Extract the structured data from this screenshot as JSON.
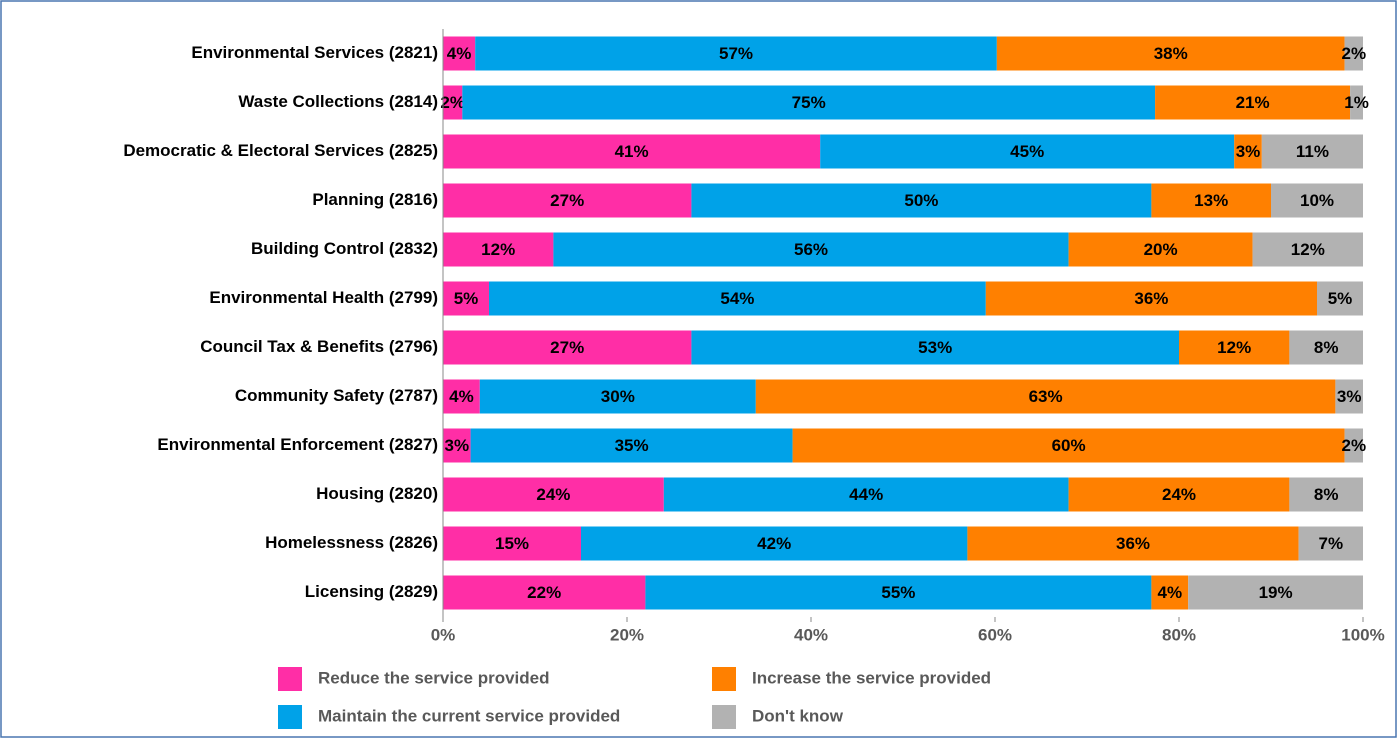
{
  "chart_data": {
    "type": "bar",
    "orientation": "horizontal",
    "stacked": true,
    "categories": [
      "Environmental Services  (2821)",
      "Waste Collections (2814)",
      "Democratic & Electoral Services  (2825)",
      "Planning  (2816)",
      "Building Control (2832)",
      "Environmental Health (2799)",
      "Council Tax & Benefits (2796)",
      "Community Safety (2787)",
      "Environmental Enforcement (2827)",
      "Housing (2820)",
      "Homelessness (2826)",
      "Licensing (2829)"
    ],
    "series": [
      {
        "name": "Reduce the service provided",
        "color": "#ff2ea6",
        "values": [
          3.5,
          2.1,
          41,
          27,
          12,
          5,
          27,
          4,
          3,
          24,
          15,
          22
        ],
        "value_labels": [
          "4%",
          "2%",
          "41%",
          "27%",
          "12%",
          "5%",
          "27%",
          "4%",
          "3%",
          "24%",
          "15%",
          "22%"
        ]
      },
      {
        "name": "Maintain the current service provided",
        "color": "#00a2e8",
        "values": [
          56.7,
          75.3,
          45,
          50,
          56,
          54,
          53,
          30,
          35,
          44,
          42,
          55
        ],
        "value_labels": [
          "57%",
          "75%",
          "45%",
          "50%",
          "56%",
          "54%",
          "53%",
          "30%",
          "35%",
          "44%",
          "42%",
          "55%"
        ]
      },
      {
        "name": "Increase the service provided",
        "color": "#ff8000",
        "values": [
          37.8,
          21.2,
          3,
          13,
          20,
          36,
          12,
          63,
          60,
          24,
          36,
          4
        ],
        "value_labels": [
          "38%",
          "21%",
          "3%",
          "13%",
          "20%",
          "36%",
          "12%",
          "63%",
          "60%",
          "24%",
          "36%",
          "4%"
        ]
      },
      {
        "name": "Don't know",
        "color": "#b2b2b2",
        "values": [
          2.0,
          1.4,
          11,
          10,
          12,
          5,
          8,
          3,
          2,
          8,
          7,
          19
        ],
        "value_labels": [
          "2%",
          "1%",
          "11%",
          "10%",
          "12%",
          "5%",
          "8%",
          "3%",
          "2%",
          "8%",
          "7%",
          "19%"
        ]
      }
    ],
    "xlim": [
      0,
      100
    ],
    "xticks": [
      {
        "value": 0,
        "label": "0%"
      },
      {
        "value": 20,
        "label": "20%"
      },
      {
        "value": 40,
        "label": "40%"
      },
      {
        "value": 60,
        "label": "60%"
      },
      {
        "value": 80,
        "label": "80%"
      },
      {
        "value": 100,
        "label": "100%"
      }
    ],
    "grid": false
  }
}
